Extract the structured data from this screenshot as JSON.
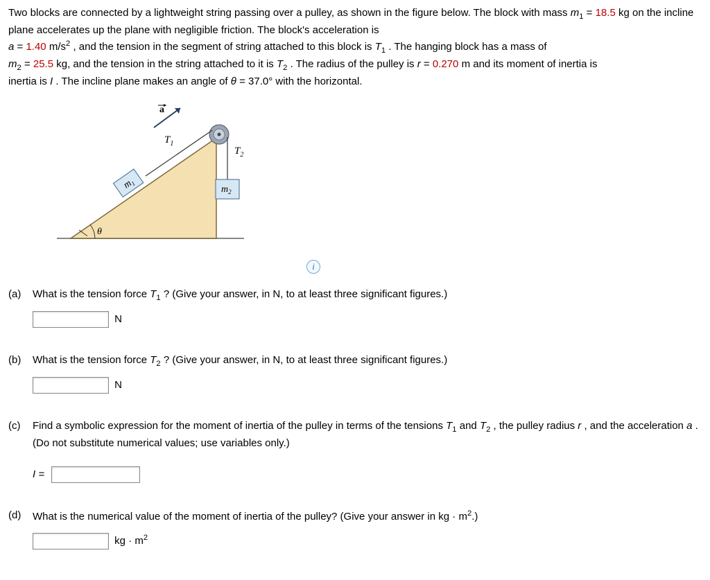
{
  "problem": {
    "intro_pre": "Two blocks are connected by a lightweight string passing over a pulley, as shown in the figure below. The block with mass ",
    "m1_label": "m",
    "m1_sub": "1",
    "eq": " = ",
    "m1_val": "18.5",
    "m1_post": " kg on the incline plane accelerates up the plane with negligible friction. The block's acceleration is ",
    "a_label": "a",
    "a_val": "1.40",
    "a_unit": " m/s",
    "a_exp": "2",
    "a_post": ", and the tension in the segment of string attached to this block is ",
    "T1_label": "T",
    "T1_sub": "1",
    "after_T1": ". The hanging block has a mass of ",
    "m2_label": "m",
    "m2_sub": "2",
    "m2_val": "25.5",
    "m2_post": " kg, and the tension in the string attached to it is ",
    "T2_label": "T",
    "T2_sub": "2",
    "after_T2": ". The radius of the pulley is ",
    "r_label": "r",
    "r_val": "0.270",
    "r_post": " m and its moment of inertia is ",
    "I_label": "I",
    "after_I": ". The incline plane makes an angle of ",
    "theta_label": "θ",
    "theta_val": "37.0°",
    "theta_post": " with the horizontal."
  },
  "colors": {
    "red": "#bb0000",
    "text": "#000000"
  },
  "figure": {
    "a_vec": "a",
    "T1": "T",
    "T1_sub": "1",
    "T2": "T",
    "T2_sub": "2",
    "m1": "m",
    "m1_sub": "1",
    "m2": "m",
    "m2_sub": "2",
    "theta": "θ",
    "incline_fill": "#f4e0b0",
    "incline_stroke": "#7a6a3a",
    "block_fill": "#d7e8f5",
    "block_stroke": "#5a7ea0",
    "pulley_outer": "#9aa6b2",
    "pulley_inner": "#c8d2dc",
    "ground_stroke": "#888888",
    "arrow_color": "#2a3b66",
    "string_color": "#333333"
  },
  "info_icon": "i",
  "parts": {
    "a": {
      "label": "(a)",
      "q_pre": "What is the tension force ",
      "T": "T",
      "Tsub": "1",
      "q_post": "? (Give your answer, in N, to at least three significant figures.)",
      "unit": "N"
    },
    "b": {
      "label": "(b)",
      "q_pre": "What is the tension force ",
      "T": "T",
      "Tsub": "2",
      "q_post": "? (Give your answer, in N, to at least three significant figures.)",
      "unit": "N"
    },
    "c": {
      "label": "(c)",
      "q_pre": "Find a symbolic expression for the moment of inertia of the pulley in terms of the tensions ",
      "T1": "T",
      "T1sub": "1",
      "and": " and ",
      "T2": "T",
      "T2sub": "2",
      "q_mid": ", the pulley radius ",
      "r": "r",
      "q_mid2": ", and the acceleration ",
      "a": "a",
      "q_post": ". (Do not substitute numerical values; use variables only.)",
      "Ieq": "I ="
    },
    "d": {
      "label": "(d)",
      "q_pre": "What is the numerical value of the moment of inertia of the pulley? (Give your answer in kg · m",
      "exp": "2",
      "q_post": ".)",
      "unit_pre": "kg · m",
      "unit_exp": "2"
    }
  }
}
